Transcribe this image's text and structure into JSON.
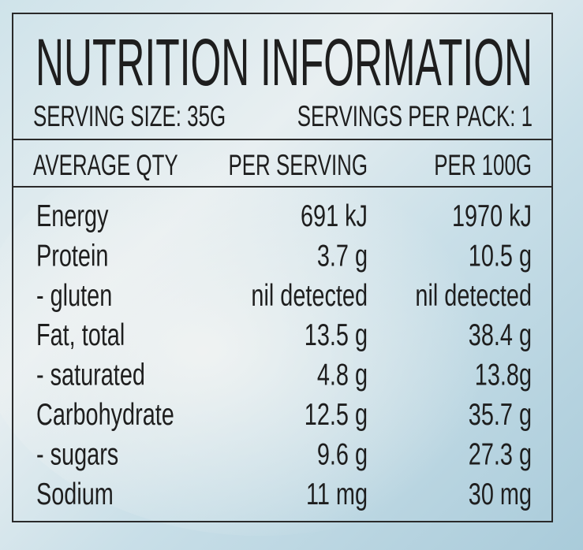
{
  "header": {
    "title": "NUTRITION INFORMATION",
    "serving_size": "SERVING SIZE: 35G",
    "servings_per_pack": "SERVINGS PER PACK: 1"
  },
  "table": {
    "columns": [
      "AVERAGE QTY",
      "PER SERVING",
      "PER 100G"
    ],
    "rows": [
      [
        "Energy",
        "691 kJ",
        "1970 kJ"
      ],
      [
        "Protein",
        "3.7 g",
        "10.5 g"
      ],
      [
        "- gluten",
        "nil detected",
        "nil detected"
      ],
      [
        "Fat, total",
        "13.5 g",
        "38.4 g"
      ],
      [
        "- saturated",
        "4.8 g",
        "13.8g"
      ],
      [
        "Carbohydrate",
        "12.5 g",
        "35.7 g"
      ],
      [
        "- sugars",
        "9.6 g",
        "27.3 g"
      ],
      [
        "Sodium",
        "11 mg",
        "30 mg"
      ]
    ]
  }
}
